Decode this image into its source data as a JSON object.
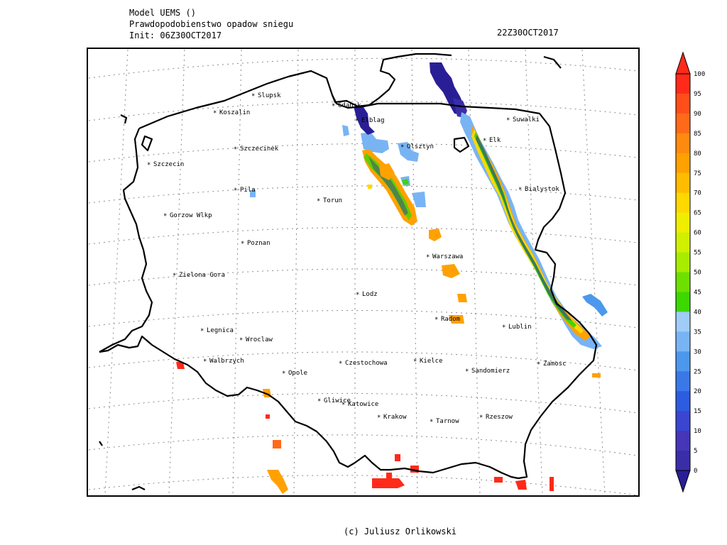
{
  "header": {
    "model": "Model UEMS ()",
    "product": "Prawdopodobienstwo opadow sniegu",
    "init": "Init: 06Z30OCT2017",
    "valid": "22Z30OCT2017"
  },
  "credit": "(c) Juliusz Orlikowski",
  "cities": [
    "Slupsk",
    "Gdansk",
    "Koszalin",
    "Elblag",
    "Suwalki",
    "Elk",
    "Szczecinek",
    "Olsztyn",
    "Szczecin",
    "Bialystok",
    "Pila",
    "Torun",
    "Gorzow Wlkp",
    "Poznan",
    "Warszawa",
    "Zielona Gora",
    "Lodz",
    "Radom",
    "Lublin",
    "Legnica",
    "Wroclaw",
    "Walbrzych",
    "Opole",
    "Czestochowa",
    "Kielce",
    "Sandomierz",
    "Zamosc",
    "Gliwice",
    "Katowice",
    "Krakow",
    "Tarnow",
    "Rzeszow"
  ],
  "colorbar": {
    "labels": [
      "100",
      "95",
      "90",
      "85",
      "80",
      "75",
      "70",
      "65",
      "60",
      "55",
      "50",
      "45",
      "40",
      "35",
      "30",
      "25",
      "20",
      "15",
      "10",
      "5",
      "0"
    ],
    "colors": [
      "#ff2a1a",
      "#ff4e1a",
      "#ff6a1a",
      "#ff8a10",
      "#ffa100",
      "#ffbc00",
      "#ffd800",
      "#f0ee00",
      "#d0f000",
      "#a8ec00",
      "#6ee000",
      "#3cd800",
      "#a0ccf8",
      "#78b4f4",
      "#4c98ec",
      "#3a78e8",
      "#2c5ce0",
      "#3a46d0",
      "#4636b8",
      "#3a2ea8",
      "#2a1e96"
    ]
  }
}
